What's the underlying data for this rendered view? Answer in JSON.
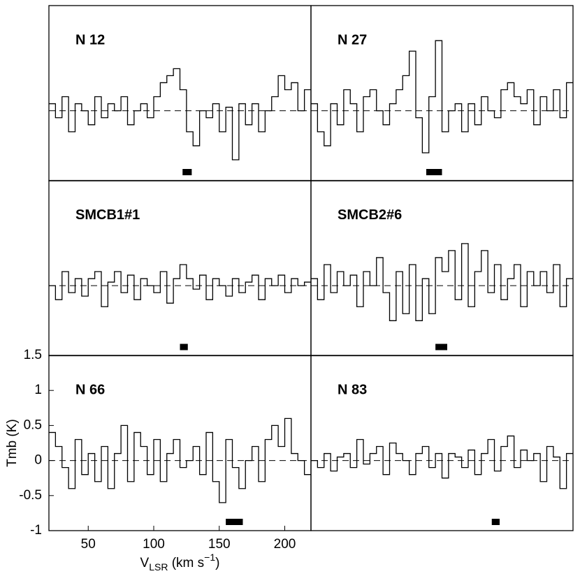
{
  "chart_data": [
    {
      "type": "step",
      "title": "N 12",
      "xlim": [
        20,
        220
      ],
      "ylim": [
        -1,
        1.5
      ],
      "zero_line": true,
      "color": "#000000",
      "marker": [
        122,
        129
      ],
      "x": [
        20,
        25,
        30,
        35,
        40,
        45,
        50,
        55,
        60,
        65,
        70,
        75,
        80,
        85,
        90,
        95,
        100,
        105,
        110,
        115,
        120,
        125,
        130,
        135,
        140,
        145,
        150,
        155,
        160,
        165,
        170,
        175,
        180,
        185,
        190,
        195,
        200,
        205,
        210,
        215
      ],
      "values": [
        0.1,
        -0.1,
        0.2,
        -0.3,
        0.1,
        0,
        -0.2,
        0.2,
        -0.1,
        0.1,
        0.0,
        0.2,
        -0.2,
        0.0,
        0.1,
        -0.1,
        0.2,
        0.4,
        0.5,
        0.6,
        0.3,
        -0.3,
        -0.5,
        0.0,
        -0.1,
        0.1,
        -0.3,
        0.05,
        -0.7,
        0.1,
        -0.2,
        0.1,
        -0.3,
        0.0,
        0.2,
        0.5,
        0.3,
        0.4,
        0.0,
        0.3
      ]
    },
    {
      "type": "step",
      "title": "N 27",
      "xlim": [
        20,
        220
      ],
      "ylim": [
        -1,
        1.5
      ],
      "zero_line": true,
      "color": "#000000",
      "marker": [
        108,
        120
      ],
      "x": [
        20,
        25,
        30,
        35,
        40,
        45,
        50,
        55,
        60,
        65,
        70,
        75,
        80,
        85,
        90,
        95,
        100,
        105,
        110,
        115,
        120,
        125,
        130,
        135,
        140,
        145,
        150,
        155,
        160,
        165,
        170,
        175,
        180,
        185,
        190,
        195,
        200,
        205,
        210,
        215
      ],
      "values": [
        0.1,
        -0.3,
        -0.5,
        0.1,
        -0.2,
        0.3,
        0.1,
        -0.3,
        0.2,
        0.3,
        0.0,
        -0.2,
        0.1,
        0.3,
        0.5,
        0.85,
        -0.1,
        -0.6,
        0.2,
        1.0,
        -0.3,
        0.0,
        0.1,
        -0.3,
        0.1,
        -0.2,
        0.2,
        0.0,
        -0.1,
        0.3,
        0.4,
        0.2,
        0.1,
        0.3,
        -0.2,
        0.2,
        0.0,
        0.3,
        -0.1,
        0.4
      ]
    },
    {
      "type": "step",
      "title": "SMCB1#1",
      "xlim": [
        20,
        220
      ],
      "ylim": [
        -1,
        1.5
      ],
      "zero_line": true,
      "color": "#000000",
      "marker": [
        120,
        126
      ],
      "x": [
        20,
        25,
        30,
        35,
        40,
        45,
        50,
        55,
        60,
        65,
        70,
        75,
        80,
        85,
        90,
        95,
        100,
        105,
        110,
        115,
        120,
        125,
        130,
        135,
        140,
        145,
        150,
        155,
        160,
        165,
        170,
        175,
        180,
        185,
        190,
        195,
        200,
        205,
        210,
        215
      ],
      "values": [
        0.0,
        -0.2,
        0.2,
        -0.1,
        0.1,
        -0.15,
        0.1,
        0.2,
        -0.3,
        0.05,
        0.2,
        -0.1,
        0.15,
        -0.2,
        0.1,
        0.0,
        -0.1,
        0.2,
        -0.25,
        0.1,
        0.3,
        0.1,
        -0.05,
        0.15,
        -0.2,
        0.1,
        0.0,
        -0.15,
        0.1,
        -0.1,
        0.05,
        0.15,
        -0.2,
        0.1,
        0.0,
        0.15,
        -0.1,
        0.1,
        0.0,
        0.05
      ]
    },
    {
      "type": "step",
      "title": "SMCB2#6",
      "xlim": [
        20,
        220
      ],
      "ylim": [
        -1,
        1.5
      ],
      "zero_line": true,
      "color": "#000000",
      "marker": [
        115,
        124
      ],
      "x": [
        20,
        25,
        30,
        35,
        40,
        45,
        50,
        55,
        60,
        65,
        70,
        75,
        80,
        85,
        90,
        95,
        100,
        105,
        110,
        115,
        120,
        125,
        130,
        135,
        140,
        145,
        150,
        155,
        160,
        165,
        170,
        175,
        180,
        185,
        190,
        195,
        200,
        205,
        210,
        215
      ],
      "values": [
        0.1,
        -0.2,
        0.3,
        -0.1,
        0.2,
        0.0,
        0.15,
        -0.3,
        0.2,
        0.0,
        0.4,
        -0.1,
        -0.5,
        0.2,
        -0.4,
        0.3,
        -0.5,
        0.1,
        -0.4,
        0.4,
        0.2,
        0.5,
        -0.2,
        0.6,
        -0.3,
        0.2,
        0.5,
        -0.1,
        0.3,
        -0.2,
        0.1,
        0.3,
        -0.3,
        0.2,
        0.0,
        0.2,
        -0.1,
        0.3,
        -0.3,
        0.1
      ]
    },
    {
      "type": "step",
      "title": "N 66",
      "xlim": [
        20,
        220
      ],
      "ylim": [
        -1,
        1.5
      ],
      "zero_line": true,
      "color": "#000000",
      "marker": [
        155,
        168
      ],
      "xticks": [
        50,
        100,
        150,
        200
      ],
      "yticks": [
        -1,
        -0.5,
        0,
        0.5,
        1,
        1.5
      ],
      "xlabel": [
        "V",
        "LSR",
        " (km s",
        "−1",
        ")"
      ],
      "ylabel": "Tmb (K)",
      "x": [
        20,
        25,
        30,
        35,
        40,
        45,
        50,
        55,
        60,
        65,
        70,
        75,
        80,
        85,
        90,
        95,
        100,
        105,
        110,
        115,
        120,
        125,
        130,
        135,
        140,
        145,
        150,
        155,
        160,
        165,
        170,
        175,
        180,
        185,
        190,
        195,
        200,
        205,
        210,
        215
      ],
      "values": [
        0.4,
        0.2,
        -0.1,
        -0.4,
        0.3,
        -0.2,
        0.1,
        -0.3,
        0.2,
        -0.4,
        0.1,
        0.5,
        -0.3,
        0.4,
        0.2,
        -0.2,
        0.3,
        -0.3,
        0.1,
        0.3,
        -0.1,
        0.0,
        0.2,
        -0.2,
        0.4,
        -0.3,
        -0.6,
        0.3,
        -0.1,
        -0.4,
        0.0,
        0.2,
        -0.3,
        0.3,
        0.5,
        0.2,
        0.6,
        0.1,
        0.0,
        -0.2
      ]
    },
    {
      "type": "step",
      "title": "N 83",
      "xlim": [
        20,
        220
      ],
      "ylim": [
        -1,
        1.5
      ],
      "zero_line": true,
      "color": "#000000",
      "marker": [
        158,
        164
      ],
      "x": [
        20,
        25,
        30,
        35,
        40,
        45,
        50,
        55,
        60,
        65,
        70,
        75,
        80,
        85,
        90,
        95,
        100,
        105,
        110,
        115,
        120,
        125,
        130,
        135,
        140,
        145,
        150,
        155,
        160,
        165,
        170,
        175,
        180,
        185,
        190,
        195,
        200,
        205,
        210,
        215
      ],
      "values": [
        0.0,
        -0.1,
        0.1,
        -0.15,
        0.05,
        0.1,
        -0.1,
        0.3,
        -0.05,
        0.1,
        0.2,
        -0.2,
        0.25,
        0.1,
        0.0,
        -0.2,
        0.1,
        0.2,
        -0.1,
        0.1,
        -0.25,
        0.1,
        0.05,
        -0.1,
        0.15,
        -0.2,
        0.1,
        0.3,
        -0.15,
        0.2,
        0.35,
        -0.1,
        0.15,
        0.0,
        0.1,
        -0.3,
        0.2,
        0.05,
        -0.4,
        0.1
      ]
    }
  ]
}
